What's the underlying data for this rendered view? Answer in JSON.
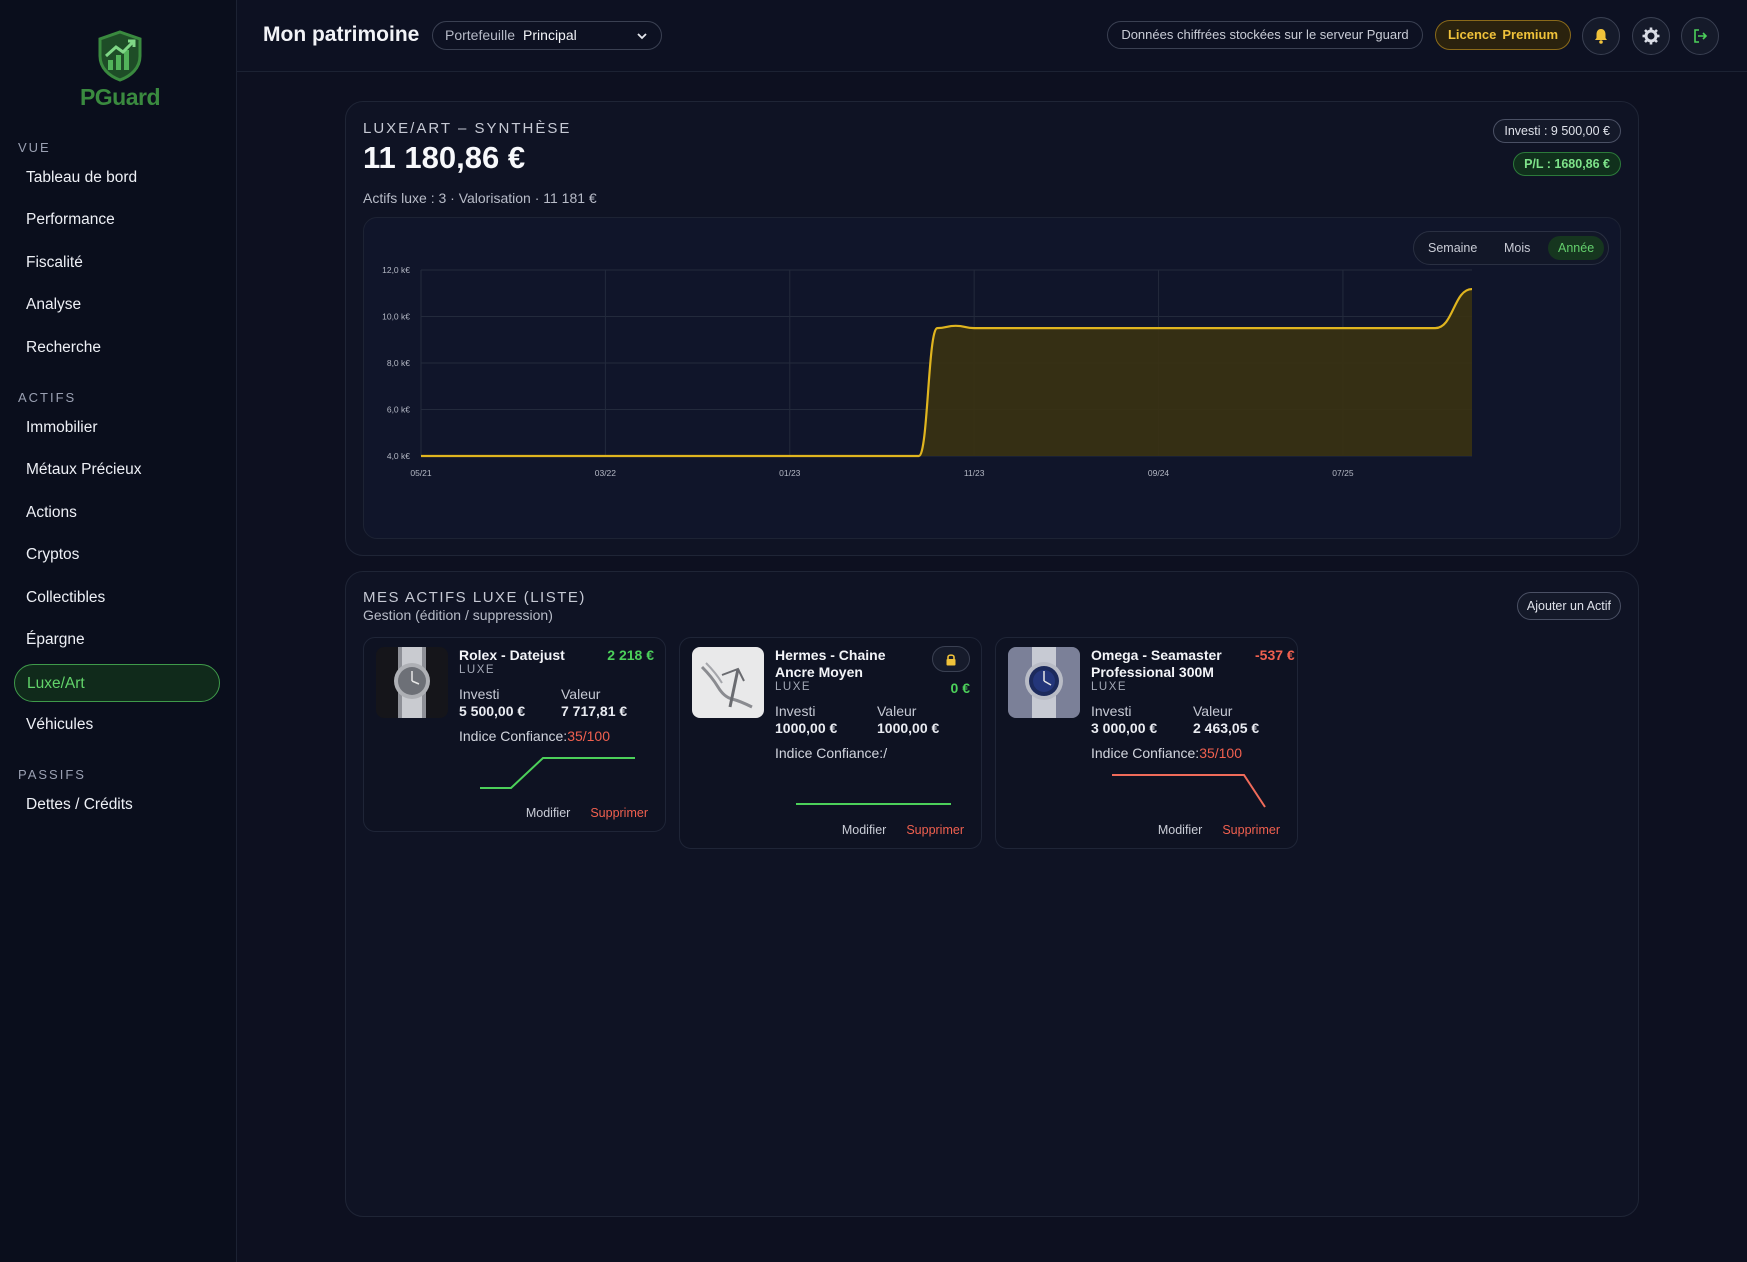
{
  "app": {
    "name": "PGuard"
  },
  "sidebar": {
    "sections": [
      {
        "title": "VUE",
        "items": [
          "Tableau de bord",
          "Performance",
          "Fiscalité",
          "Analyse",
          "Recherche"
        ]
      },
      {
        "title": "ACTIFS",
        "items": [
          "Immobilier",
          "Métaux Précieux",
          "Actions",
          "Cryptos",
          "Collectibles",
          "Épargne",
          "Luxe/Art",
          "Véhicules"
        ]
      },
      {
        "title": "PASSIFS",
        "items": [
          "Dettes / Crédits"
        ]
      }
    ],
    "active_item": "Luxe/Art"
  },
  "header": {
    "title": "Mon patrimoine",
    "portfolio_label": "Portefeuille",
    "portfolio_value": "Principal",
    "encryption_notice": "Données chiffrées stockées sur le serveur Pguard",
    "license_label": "Licence",
    "license_tier": "Premium",
    "icons": [
      "bell-icon",
      "gear-icon",
      "logout-icon"
    ]
  },
  "summary": {
    "title": "LUXE/ART – SYNTHÈSE",
    "total": "11 180,86 €",
    "subline": "Actifs luxe : 3 · Valorisation · 11 181 €",
    "invested": "Investi : 9 500,00 €",
    "pl": "P/L : 1680,86 €",
    "ranges": [
      "Semaine",
      "Mois",
      "Année"
    ],
    "active_range": "Année"
  },
  "chart_data": {
    "type": "area",
    "x_ticks": [
      "05/21",
      "03/22",
      "01/23",
      "11/23",
      "09/24",
      "07/25"
    ],
    "y_ticks": [
      "4,0 k€",
      "6,0 k€",
      "8,0 k€",
      "10,0 k€",
      "12,0 k€"
    ],
    "ylim": [
      4000,
      12000
    ],
    "x_range": [
      "2021-05",
      "2026-02"
    ],
    "series": [
      {
        "x": [
          "2021-05",
          "2023-08",
          "2023-09",
          "2023-10",
          "2023-11",
          "2024-06",
          "2025-07",
          "2025-12",
          "2026-02"
        ],
        "y": [
          4000,
          4000,
          9500,
          9600,
          9500,
          9500,
          9500,
          9500,
          11181
        ]
      }
    ],
    "line_color": "#e0b51f",
    "fill_color": "#3a3212",
    "grid": true
  },
  "assets": {
    "title": "MES ACTIFS LUXE (LISTE)",
    "subtitle": "Gestion (édition / suppression)",
    "add_label": "Ajouter un Actif",
    "invest_label": "Investi",
    "value_label": "Valeur",
    "confidence_label": "Indice Confiance:",
    "edit_label": "Modifier",
    "delete_label": "Supprimer",
    "items": [
      {
        "name_lines": [
          "Rolex - Datejust"
        ],
        "category": "LUXE",
        "delta": "2 218 €",
        "delta_color": "#4cd05a",
        "invested": "5 500,00 €",
        "value": "7 717,81 €",
        "confidence": "35/100",
        "spark_color": "#4cd05a",
        "locked": false
      },
      {
        "name_lines": [
          "Hermes - Chaine",
          "Ancre Moyen"
        ],
        "category": "LUXE",
        "delta": "0 €",
        "delta_color": "#4cd05a",
        "invested": "1000,00 €",
        "value": "1000,00 €",
        "confidence": "/",
        "spark_color": "#4cd05a",
        "locked": true
      },
      {
        "name_lines": [
          "Omega - Seamaster",
          "Professional 300M"
        ],
        "category": "LUXE",
        "delta": "-537 €",
        "delta_color": "#f0604f",
        "invested": "3 000,00 €",
        "value": "2 463,05 €",
        "confidence": "35/100",
        "spark_color": "#f06b5a",
        "locked": false
      }
    ]
  }
}
